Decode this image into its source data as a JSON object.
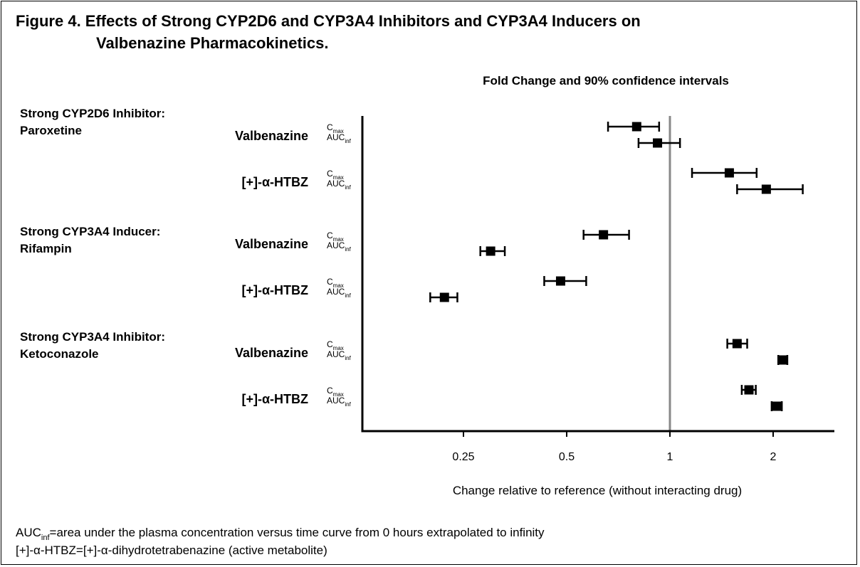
{
  "chart_data": {
    "type": "forest",
    "title_line1": "Figure 4. Effects of Strong CYP2D6 and CYP3A4 Inhibitors and CYP3A4 Inducers on",
    "title_line2": "Valbenazine Pharmacokinetics.",
    "subtitle": "Fold Change and 90% confidence intervals",
    "xlabel": "Change relative to reference (without interacting drug)",
    "x_scale": "log2",
    "xlim": [
      0.125,
      3.1
    ],
    "reference_line": 1,
    "x_ticks": [
      0.25,
      0.5,
      1,
      2
    ],
    "x_tick_labels": [
      "0.25",
      "0.5",
      "1",
      "2"
    ],
    "param_labels": {
      "cmax_main": "C",
      "cmax_sub": "max",
      "auc_main": "AUC",
      "auc_sub": "inf"
    },
    "groups": [
      {
        "label_line1": "Strong CYP2D6 Inhibitor:",
        "label_line2": "Paroxetine",
        "analytes": [
          {
            "name": "Valbenazine",
            "cmax": {
              "est": 0.8,
              "lo": 0.66,
              "hi": 0.93
            },
            "auc": {
              "est": 0.92,
              "lo": 0.81,
              "hi": 1.07
            }
          },
          {
            "name": "[+]-α-HTBZ",
            "cmax": {
              "est": 1.49,
              "lo": 1.16,
              "hi": 1.79
            },
            "auc": {
              "est": 1.91,
              "lo": 1.57,
              "hi": 2.44
            }
          }
        ]
      },
      {
        "label_line1": "Strong CYP3A4 Inducer:",
        "label_line2": "Rifampin",
        "analytes": [
          {
            "name": "Valbenazine",
            "cmax": {
              "est": 0.64,
              "lo": 0.56,
              "hi": 0.76
            },
            "auc": {
              "est": 0.3,
              "lo": 0.28,
              "hi": 0.33
            }
          },
          {
            "name": "[+]-α-HTBZ",
            "cmax": {
              "est": 0.48,
              "lo": 0.43,
              "hi": 0.57
            },
            "auc": {
              "est": 0.22,
              "lo": 0.2,
              "hi": 0.24
            }
          }
        ]
      },
      {
        "label_line1": "Strong CYP3A4 Inhibitor:",
        "label_line2": "Ketoconazole",
        "analytes": [
          {
            "name": "Valbenazine",
            "cmax": {
              "est": 1.57,
              "lo": 1.47,
              "hi": 1.68
            },
            "auc": {
              "est": 2.14,
              "lo": 2.07,
              "hi": 2.2
            }
          },
          {
            "name": "[+]-α-HTBZ",
            "cmax": {
              "est": 1.7,
              "lo": 1.62,
              "hi": 1.78
            },
            "auc": {
              "est": 2.05,
              "lo": 1.98,
              "hi": 2.12
            }
          }
        ]
      }
    ]
  },
  "footnotes": [
    {
      "abbr_main": "AUC",
      "abbr_sub": "inf",
      "text": "=area under the plasma concentration versus time curve from 0 hours extrapolated to infinity"
    },
    {
      "abbr_main": "[+]-α-HTBZ",
      "abbr_sub": "",
      "text": "=[+]-α-dihydrotetrabenazine (active metabolite)"
    }
  ]
}
